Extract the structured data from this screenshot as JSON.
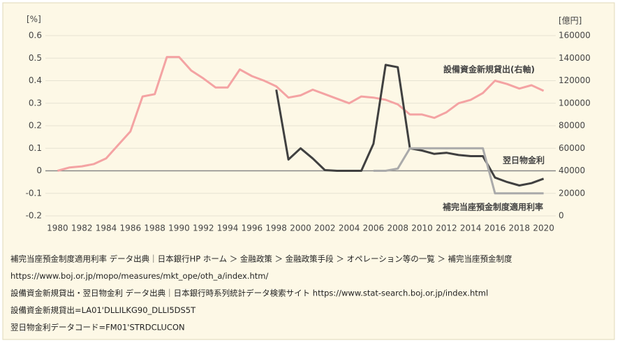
{
  "chart_data": {
    "type": "line",
    "y_unit": "[%]",
    "y2_unit": "[億円]",
    "x": [
      1980,
      1981,
      1982,
      1983,
      1984,
      1985,
      1986,
      1987,
      1988,
      1989,
      1990,
      1991,
      1992,
      1993,
      1994,
      1995,
      1996,
      1997,
      1998,
      1999,
      2000,
      2001,
      2002,
      2003,
      2004,
      2005,
      2006,
      2007,
      2008,
      2009,
      2010,
      2011,
      2012,
      2013,
      2014,
      2015,
      2016,
      2017,
      2018,
      2019,
      2020
    ],
    "xlim": [
      1979,
      2021
    ],
    "xticks": [
      1980,
      1982,
      1984,
      1986,
      1988,
      1990,
      1992,
      1994,
      1996,
      1998,
      2000,
      2002,
      2004,
      2006,
      2008,
      2010,
      2012,
      2014,
      2016,
      2018,
      2020
    ],
    "ylim": [
      -0.2,
      0.6
    ],
    "yticks": [
      -0.2,
      -0.1,
      0,
      0.1,
      0.2,
      0.3,
      0.4,
      0.5,
      0.6
    ],
    "y2lim": [
      0,
      160000
    ],
    "y2ticks": [
      0,
      20000,
      40000,
      60000,
      80000,
      100000,
      120000,
      140000,
      160000
    ],
    "grid": true,
    "series": [
      {
        "name": "設備資金新規貸出(右軸)",
        "color": "#f4a3a3",
        "axis": "y2",
        "values": [
          40000,
          43000,
          44000,
          46000,
          51000,
          63000,
          75000,
          106000,
          108000,
          141000,
          141000,
          129000,
          122000,
          114000,
          114000,
          130000,
          124000,
          120000,
          115000,
          105000,
          107000,
          112000,
          108000,
          104000,
          100000,
          106000,
          105000,
          103000,
          99000,
          90000,
          90000,
          87000,
          92000,
          100000,
          103000,
          109000,
          120000,
          117000,
          113000,
          116000,
          111000
        ]
      },
      {
        "name": "翌日物金利",
        "color": "#404040",
        "values": [
          null,
          null,
          null,
          null,
          null,
          null,
          null,
          null,
          null,
          null,
          null,
          null,
          null,
          null,
          null,
          null,
          null,
          null,
          0.36,
          0.05,
          0.1,
          0.055,
          0.003,
          0,
          0,
          0,
          0.12,
          0.47,
          0.46,
          0.1,
          0.09,
          0.075,
          0.08,
          0.07,
          0.065,
          0.065,
          -0.03,
          -0.05,
          -0.065,
          -0.055,
          -0.035
        ]
      },
      {
        "name": "補完当座預金制度適用利率",
        "color": "#aaaaaa",
        "values": [
          null,
          null,
          null,
          null,
          null,
          null,
          null,
          null,
          null,
          null,
          null,
          null,
          null,
          null,
          null,
          null,
          null,
          null,
          null,
          null,
          null,
          null,
          null,
          null,
          null,
          null,
          0,
          0,
          0.01,
          0.1,
          0.1,
          0.1,
          0.1,
          0.1,
          0.1,
          0.1,
          -0.1,
          -0.1,
          -0.1,
          -0.1,
          -0.1
        ]
      }
    ],
    "notes": [
      "補完当座預金制度適用利率 データ出典｜日本銀行HP ホーム ＞ 金融政策 ＞ 金融政策手段 ＞ オペレーション等の一覧 ＞ 補完当座預金制度",
      "https://www.boj.or.jp/mopo/measures/mkt_ope/oth_a/index.htm/",
      "設備資金新規貸出・翌日物金利 データ出典｜日本銀行時系列統計データ検索サイト https://www.stat-search.boj.or.jp/index.html",
      "設備資金新規貸出=LA01'DLLILKG90_DLLI5DS5T",
      "翌日物金利データコード=FM01'STRDCLUCON"
    ]
  }
}
